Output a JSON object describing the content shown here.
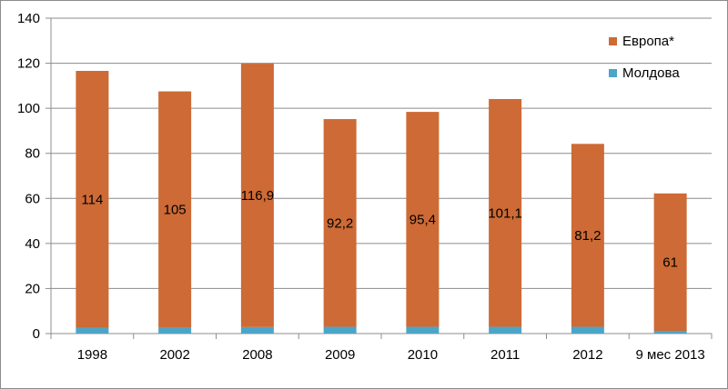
{
  "chart_data": {
    "type": "bar",
    "stacked": true,
    "categories": [
      "1998",
      "2002",
      "2008",
      "2009",
      "2010",
      "2011",
      "2012",
      "9 мес 2013"
    ],
    "series": [
      {
        "name": "Молдова",
        "color": "#4ba5c9",
        "values": [
          2.6,
          2.5,
          2.9,
          3.0,
          3.0,
          3.0,
          3.0,
          1.2
        ]
      },
      {
        "name": "Европа*",
        "color": "#cd6a35",
        "values": [
          114,
          105,
          116.9,
          92.2,
          95.4,
          101.1,
          81.2,
          61
        ],
        "data_labels": [
          "114",
          "105",
          "116,9",
          "92,2",
          "95,4",
          "101,1",
          "81,2",
          "61"
        ]
      }
    ],
    "y_ticks": [
      "0",
      "20",
      "40",
      "60",
      "80",
      "100",
      "120",
      "140"
    ],
    "ylim": [
      0,
      140
    ],
    "grid": "horizontal",
    "legend_position": "right"
  }
}
